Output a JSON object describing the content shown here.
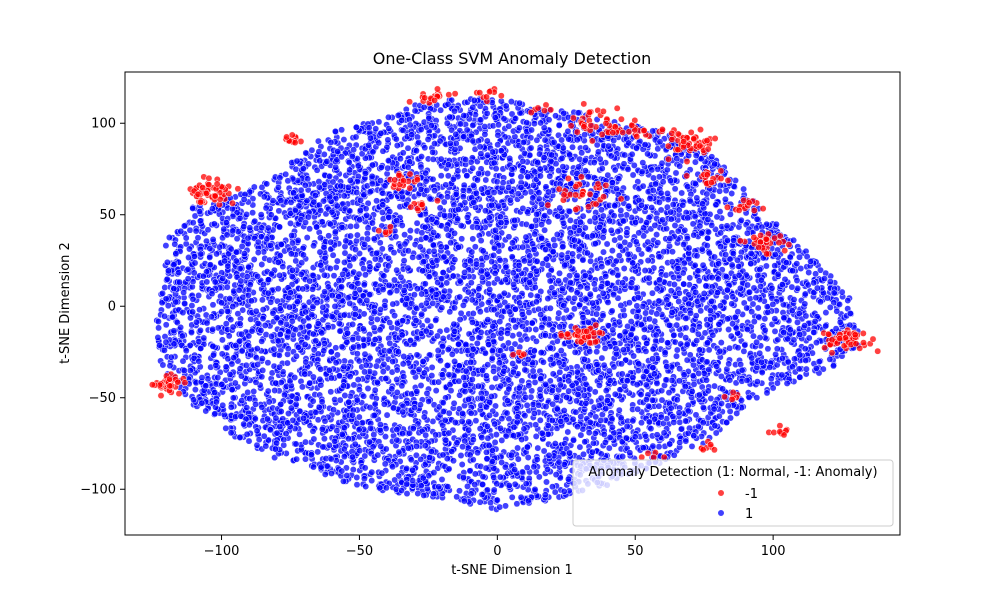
{
  "chart_data": {
    "type": "scatter",
    "title": "One-Class SVM Anomaly Detection",
    "xlabel": "t-SNE Dimension 1",
    "ylabel": "t-SNE Dimension 2",
    "xlim": [
      -135,
      146
    ],
    "ylim": [
      -125,
      128
    ],
    "x_ticks": [
      -100,
      -50,
      0,
      50,
      100
    ],
    "x_tick_labels": [
      "−100",
      "−50",
      "0",
      "50",
      "100"
    ],
    "y_ticks": [
      -100,
      -50,
      0,
      50,
      100
    ],
    "y_tick_labels": [
      "−100",
      "−50",
      "0",
      "50",
      "100"
    ],
    "grid": false,
    "legend": {
      "title": "Anomaly Detection (1: Normal, -1: Anomaly)",
      "placement": "lower-right",
      "entries": [
        {
          "label": "-1",
          "color": "#ff0000"
        },
        {
          "label": "1",
          "color": "#0000ff"
        }
      ]
    },
    "series": [
      {
        "label": "1",
        "color": "#0000ff",
        "cloud_envelope": [
          [
            -120,
            38
          ],
          [
            -110,
            55
          ],
          [
            -95,
            60
          ],
          [
            -80,
            72
          ],
          [
            -70,
            85
          ],
          [
            -60,
            96
          ],
          [
            -45,
            102
          ],
          [
            -30,
            110
          ],
          [
            -15,
            114
          ],
          [
            0,
            113
          ],
          [
            15,
            110
          ],
          [
            30,
            106
          ],
          [
            45,
            100
          ],
          [
            60,
            96
          ],
          [
            75,
            86
          ],
          [
            85,
            72
          ],
          [
            95,
            55
          ],
          [
            105,
            40
          ],
          [
            118,
            22
          ],
          [
            128,
            5
          ],
          [
            132,
            -20
          ],
          [
            120,
            -35
          ],
          [
            100,
            -45
          ],
          [
            88,
            -58
          ],
          [
            75,
            -75
          ],
          [
            60,
            -85
          ],
          [
            45,
            -95
          ],
          [
            30,
            -103
          ],
          [
            15,
            -108
          ],
          [
            0,
            -112
          ],
          [
            -15,
            -106
          ],
          [
            -30,
            -103
          ],
          [
            -45,
            -100
          ],
          [
            -60,
            -94
          ],
          [
            -75,
            -86
          ],
          [
            -90,
            -78
          ],
          [
            -105,
            -60
          ],
          [
            -115,
            -48
          ],
          [
            -122,
            -35
          ],
          [
            -124,
            -10
          ],
          [
            -121,
            15
          ]
        ],
        "point_count": 8000
      },
      {
        "label": "-1",
        "color": "#ff0000",
        "clusters": [
          {
            "x": -103,
            "y": 62,
            "spread": 4,
            "n": 60
          },
          {
            "x": -119,
            "y": -42,
            "spread": 3,
            "n": 45
          },
          {
            "x": -75,
            "y": 91,
            "spread": 2,
            "n": 12
          },
          {
            "x": -22,
            "y": 115,
            "spread": 3,
            "n": 20
          },
          {
            "x": -3,
            "y": 116,
            "spread": 2,
            "n": 10
          },
          {
            "x": -35,
            "y": 68,
            "spread": 3,
            "n": 20
          },
          {
            "x": -28,
            "y": 55,
            "spread": 2,
            "n": 12
          },
          {
            "x": 38,
            "y": 100,
            "spread": 6,
            "n": 40
          },
          {
            "x": 52,
            "y": 96,
            "spread": 3,
            "n": 15
          },
          {
            "x": 70,
            "y": 89,
            "spread": 5,
            "n": 50
          },
          {
            "x": 78,
            "y": 70,
            "spread": 3,
            "n": 18
          },
          {
            "x": 30,
            "y": 62,
            "spread": 6,
            "n": 30
          },
          {
            "x": 90,
            "y": 55,
            "spread": 3,
            "n": 15
          },
          {
            "x": 97,
            "y": 35,
            "spread": 4,
            "n": 30
          },
          {
            "x": 127,
            "y": -18,
            "spread": 4,
            "n": 55
          },
          {
            "x": 32,
            "y": -16,
            "spread": 5,
            "n": 35
          },
          {
            "x": 103,
            "y": -68,
            "spread": 2,
            "n": 10
          },
          {
            "x": 75,
            "y": -77,
            "spread": 2,
            "n": 8
          },
          {
            "x": 87,
            "y": -50,
            "spread": 2,
            "n": 6
          },
          {
            "x": 15,
            "y": 108,
            "spread": 2,
            "n": 6
          },
          {
            "x": -40,
            "y": 42,
            "spread": 2,
            "n": 6
          },
          {
            "x": 8,
            "y": -25,
            "spread": 2,
            "n": 5
          },
          {
            "x": 58,
            "y": -82,
            "spread": 2,
            "n": 5
          }
        ]
      }
    ]
  }
}
